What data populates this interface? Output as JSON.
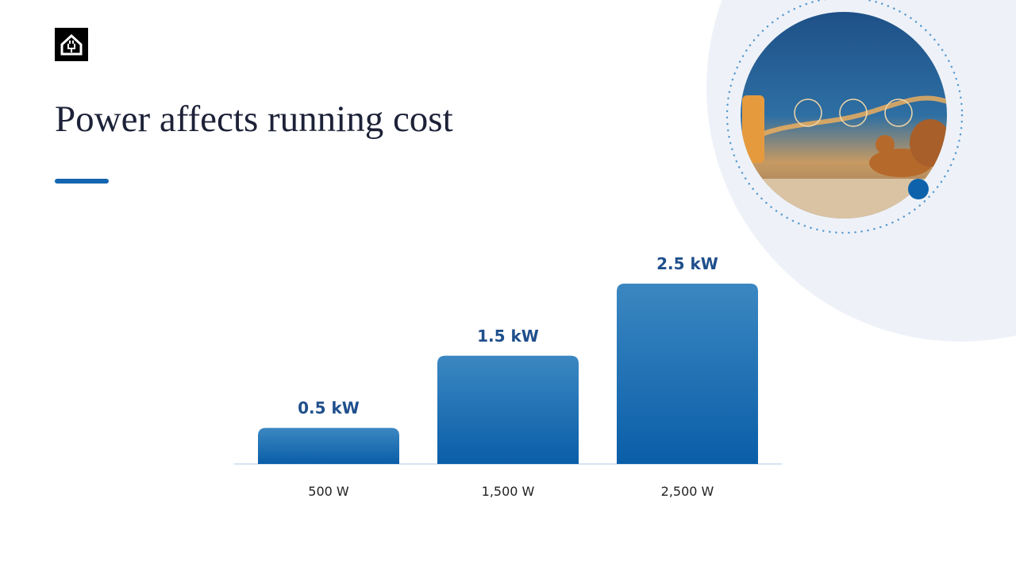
{
  "chart_data": {
    "type": "bar",
    "title": "Power affects running cost",
    "categories": [
      "500 W",
      "1,500 W",
      "2,500 W"
    ],
    "values": [
      0.5,
      1.5,
      2.5
    ],
    "value_labels": [
      "0.5 kW",
      "1.5 kW",
      "2.5 kW"
    ],
    "color": "#0d62ab"
  }
}
